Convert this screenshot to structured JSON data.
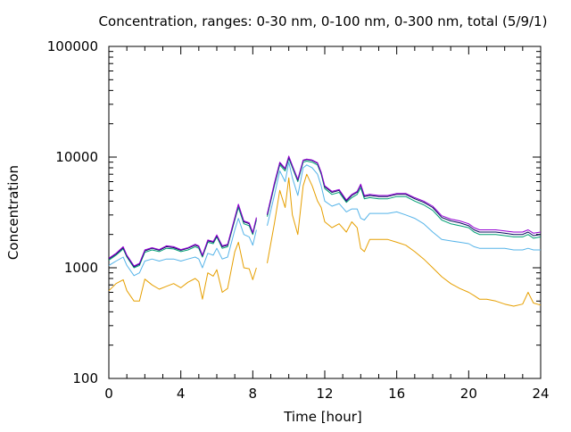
{
  "chart_data": {
    "type": "line",
    "title": "Concentration, ranges: 0-30 nm, 0-100 nm, 0-300 nm, total (5/9/1)",
    "xlabel": "Time [hour]",
    "ylabel": "Concentration",
    "xlim": [
      0,
      24
    ],
    "ylim": [
      100,
      100000
    ],
    "yscale": "log",
    "grid": false,
    "xticks": [
      0,
      4,
      8,
      12,
      16,
      20,
      24
    ],
    "yticks": [
      100,
      1000,
      10000,
      100000
    ],
    "ytick_labels": [
      "100",
      "1000",
      "10000",
      "100000"
    ],
    "xtick_labels": [
      "0",
      "4",
      "8",
      "12",
      "16",
      "20",
      "24"
    ],
    "series": [
      {
        "color": "#e69f00",
        "x": [
          0,
          0.4,
          0.8,
          1.0,
          1.4,
          1.7,
          2.0,
          2.4,
          2.8,
          3.2,
          3.6,
          4.0,
          4.4,
          4.8,
          5.0,
          5.2,
          5.5,
          5.8,
          6.0,
          6.3,
          6.6,
          7.0,
          7.2,
          7.5,
          7.8,
          8.0,
          8.2,
          8.5,
          8.8,
          9.2,
          9.5,
          9.8,
          10.0,
          10.2,
          10.5,
          10.8,
          11.0,
          11.3,
          11.6,
          11.8,
          12.0,
          12.4,
          12.8,
          13.2,
          13.5,
          13.8,
          14.0,
          14.2,
          14.5,
          15.0,
          15.5,
          16.0,
          16.5,
          17.0,
          17.5,
          18.0,
          18.5,
          19.0,
          19.5,
          20.0,
          20.3,
          20.6,
          21.0,
          21.5,
          22.0,
          22.5,
          23.0,
          23.3,
          23.6,
          24.0
        ],
        "values": [
          620,
          720,
          780,
          620,
          500,
          500,
          790,
          700,
          640,
          680,
          720,
          660,
          740,
          800,
          750,
          520,
          900,
          840,
          960,
          600,
          650,
          1400,
          1700,
          1000,
          980,
          780,
          1000,
          null,
          1100,
          2500,
          5000,
          3500,
          6500,
          3000,
          2000,
          5500,
          7000,
          5500,
          4000,
          3500,
          2600,
          2300,
          2500,
          2100,
          2600,
          2300,
          1500,
          1400,
          1800,
          1800,
          1800,
          1700,
          1600,
          1400,
          1200,
          1000,
          830,
          720,
          650,
          600,
          560,
          520,
          520,
          500,
          470,
          450,
          470,
          600,
          480,
          460
        ]
      },
      {
        "color": "#56b4e9",
        "x": [
          0,
          0.4,
          0.8,
          1.0,
          1.4,
          1.7,
          2.0,
          2.4,
          2.8,
          3.2,
          3.6,
          4.0,
          4.4,
          4.8,
          5.0,
          5.2,
          5.5,
          5.8,
          6.0,
          6.3,
          6.6,
          7.0,
          7.2,
          7.5,
          7.8,
          8.0,
          8.2,
          8.5,
          8.8,
          9.2,
          9.5,
          9.8,
          10.0,
          10.2,
          10.5,
          10.8,
          11.0,
          11.3,
          11.6,
          11.8,
          12.0,
          12.4,
          12.8,
          13.2,
          13.5,
          13.8,
          14.0,
          14.2,
          14.5,
          15.0,
          15.5,
          16.0,
          16.5,
          17.0,
          17.5,
          18.0,
          18.5,
          19.0,
          19.5,
          20.0,
          20.3,
          20.6,
          21.0,
          21.5,
          22.0,
          22.5,
          23.0,
          23.3,
          23.6,
          24.0
        ],
        "values": [
          1050,
          1150,
          1250,
          1050,
          850,
          900,
          1150,
          1200,
          1150,
          1200,
          1200,
          1150,
          1200,
          1250,
          1200,
          1000,
          1350,
          1300,
          1500,
          1200,
          1250,
          2200,
          2800,
          2000,
          1900,
          1600,
          2200,
          null,
          2400,
          4500,
          7500,
          6000,
          9000,
          6500,
          4500,
          8000,
          8500,
          8000,
          7000,
          5500,
          4000,
          3600,
          3800,
          3200,
          3400,
          3400,
          2800,
          2700,
          3100,
          3100,
          3100,
          3200,
          3000,
          2800,
          2500,
          2100,
          1800,
          1750,
          1700,
          1650,
          1550,
          1500,
          1500,
          1500,
          1500,
          1450,
          1450,
          1500,
          1450,
          1450
        ]
      },
      {
        "color": "#009e73",
        "x": [
          0,
          0.4,
          0.8,
          1.0,
          1.4,
          1.7,
          2.0,
          2.4,
          2.8,
          3.2,
          3.6,
          4.0,
          4.4,
          4.8,
          5.0,
          5.2,
          5.5,
          5.8,
          6.0,
          6.3,
          6.6,
          7.0,
          7.2,
          7.5,
          7.8,
          8.0,
          8.2,
          8.5,
          8.8,
          9.2,
          9.5,
          9.8,
          10.0,
          10.2,
          10.5,
          10.8,
          11.0,
          11.3,
          11.6,
          11.8,
          12.0,
          12.4,
          12.8,
          13.2,
          13.5,
          13.8,
          14.0,
          14.2,
          14.5,
          15.0,
          15.5,
          16.0,
          16.5,
          17.0,
          17.5,
          18.0,
          18.5,
          19.0,
          19.5,
          20.0,
          20.3,
          20.6,
          21.0,
          21.5,
          22.0,
          22.5,
          23.0,
          23.3,
          23.6,
          24.0
        ],
        "values": [
          1170,
          1300,
          1480,
          1250,
          1000,
          1050,
          1380,
          1450,
          1400,
          1500,
          1480,
          1400,
          1450,
          1550,
          1500,
          1250,
          1700,
          1650,
          1900,
          1500,
          1550,
          2700,
          3500,
          2500,
          2400,
          2000,
          2700,
          null,
          2900,
          5500,
          8500,
          7500,
          9700,
          8000,
          6000,
          9000,
          9200,
          9000,
          8500,
          7000,
          5200,
          4600,
          4800,
          3900,
          4300,
          4600,
          5300,
          4200,
          4300,
          4200,
          4200,
          4400,
          4400,
          4000,
          3700,
          3300,
          2700,
          2500,
          2400,
          2300,
          2100,
          2000,
          2000,
          2000,
          1950,
          1900,
          1900,
          2000,
          1850,
          1900
        ]
      },
      {
        "color": "#0b0b60",
        "x": [
          0,
          0.4,
          0.8,
          1.0,
          1.4,
          1.7,
          2.0,
          2.4,
          2.8,
          3.2,
          3.6,
          4.0,
          4.4,
          4.8,
          5.0,
          5.2,
          5.5,
          5.8,
          6.0,
          6.3,
          6.6,
          7.0,
          7.2,
          7.5,
          7.8,
          8.0,
          8.2,
          8.5,
          8.8,
          9.2,
          9.5,
          9.8,
          10.0,
          10.2,
          10.5,
          10.8,
          11.0,
          11.3,
          11.6,
          11.8,
          12.0,
          12.4,
          12.8,
          13.2,
          13.5,
          13.8,
          14.0,
          14.2,
          14.5,
          15.0,
          15.5,
          16.0,
          16.5,
          17.0,
          17.5,
          18.0,
          18.5,
          19.0,
          19.5,
          20.0,
          20.3,
          20.6,
          21.0,
          21.5,
          22.0,
          22.5,
          23.0,
          23.3,
          23.6,
          24.0
        ],
        "values": [
          1200,
          1330,
          1520,
          1280,
          1020,
          1080,
          1420,
          1500,
          1440,
          1550,
          1520,
          1440,
          1500,
          1600,
          1550,
          1280,
          1750,
          1700,
          1950,
          1550,
          1600,
          2800,
          3700,
          2600,
          2500,
          2050,
          2800,
          null,
          3000,
          5700,
          8800,
          7800,
          10000,
          8300,
          6200,
          9300,
          9500,
          9300,
          8800,
          7200,
          5400,
          4800,
          5000,
          4000,
          4500,
          4800,
          5600,
          4400,
          4500,
          4400,
          4400,
          4600,
          4600,
          4200,
          3900,
          3500,
          2850,
          2650,
          2550,
          2400,
          2200,
          2100,
          2100,
          2100,
          2050,
          2000,
          2000,
          2100,
          1950,
          2000
        ]
      },
      {
        "color": "#9400d3",
        "x": [
          0,
          0.4,
          0.8,
          1.0,
          1.4,
          1.7,
          2.0,
          2.4,
          2.8,
          3.2,
          3.6,
          4.0,
          4.4,
          4.8,
          5.0,
          5.2,
          5.5,
          5.8,
          6.0,
          6.3,
          6.6,
          7.0,
          7.2,
          7.5,
          7.8,
          8.0,
          8.2,
          8.5,
          8.8,
          9.2,
          9.5,
          9.8,
          10.0,
          10.2,
          10.5,
          10.8,
          11.0,
          11.3,
          11.6,
          11.8,
          12.0,
          12.4,
          12.8,
          13.2,
          13.5,
          13.8,
          14.0,
          14.2,
          14.5,
          15.0,
          15.5,
          16.0,
          16.5,
          17.0,
          17.5,
          18.0,
          18.5,
          19.0,
          19.5,
          20.0,
          20.3,
          20.6,
          21.0,
          21.5,
          22.0,
          22.5,
          23.0,
          23.3,
          23.6,
          24.0
        ],
        "values": [
          1220,
          1350,
          1550,
          1300,
          1040,
          1100,
          1450,
          1520,
          1460,
          1580,
          1550,
          1460,
          1520,
          1630,
          1580,
          1300,
          1780,
          1730,
          1980,
          1580,
          1630,
          2850,
          3750,
          2650,
          2550,
          2080,
          2850,
          null,
          3050,
          5800,
          9000,
          7900,
          10200,
          8400,
          6300,
          9400,
          9600,
          9400,
          8900,
          7300,
          5500,
          4900,
          5100,
          4100,
          4600,
          4900,
          5700,
          4500,
          4600,
          4500,
          4500,
          4700,
          4700,
          4300,
          4000,
          3600,
          2950,
          2750,
          2650,
          2500,
          2300,
          2200,
          2200,
          2200,
          2150,
          2100,
          2100,
          2200,
          2050,
          2100
        ]
      }
    ]
  }
}
